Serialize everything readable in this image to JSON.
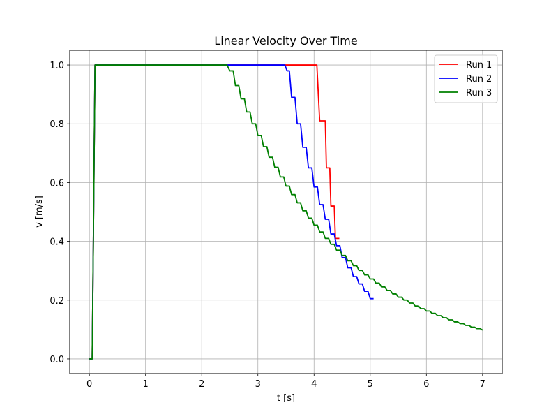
{
  "chart_data": {
    "type": "line",
    "title": "Linear Velocity Over Time",
    "xlabel": "t [s]",
    "ylabel": "v [m/s]",
    "xlim": [
      -0.35,
      7.35
    ],
    "ylim": [
      -0.05,
      1.05
    ],
    "xticks": [
      0,
      1,
      2,
      3,
      4,
      5,
      6,
      7
    ],
    "yticks": [
      0.0,
      0.2,
      0.4,
      0.6,
      0.8,
      1.0
    ],
    "xtick_labels": [
      "0",
      "1",
      "2",
      "3",
      "4",
      "5",
      "6",
      "7"
    ],
    "ytick_labels": [
      "0.0",
      "0.2",
      "0.4",
      "0.6",
      "0.8",
      "1.0"
    ],
    "grid": true,
    "legend_position": "top-right",
    "series": [
      {
        "name": "Run 1",
        "color": "#ff0000",
        "points": [
          [
            0.0,
            0.0
          ],
          [
            0.05,
            0.0
          ],
          [
            0.1,
            1.0
          ],
          [
            4.05,
            1.0
          ],
          [
            4.1,
            0.81
          ],
          [
            4.2,
            0.81
          ],
          [
            4.22,
            0.65
          ],
          [
            4.28,
            0.65
          ],
          [
            4.3,
            0.52
          ],
          [
            4.36,
            0.52
          ],
          [
            4.38,
            0.41
          ],
          [
            4.45,
            0.41
          ]
        ]
      },
      {
        "name": "Run 2",
        "color": "#0000ff",
        "points": [
          [
            0.0,
            0.0
          ],
          [
            0.05,
            0.0
          ],
          [
            0.1,
            1.0
          ],
          [
            3.48,
            1.0
          ],
          [
            3.52,
            0.98
          ],
          [
            3.56,
            0.98
          ],
          [
            3.6,
            0.89
          ],
          [
            3.66,
            0.89
          ],
          [
            3.7,
            0.8
          ],
          [
            3.76,
            0.8
          ],
          [
            3.8,
            0.72
          ],
          [
            3.86,
            0.72
          ],
          [
            3.9,
            0.65
          ],
          [
            3.96,
            0.65
          ],
          [
            4.0,
            0.585
          ],
          [
            4.06,
            0.585
          ],
          [
            4.1,
            0.525
          ],
          [
            4.16,
            0.525
          ],
          [
            4.2,
            0.475
          ],
          [
            4.26,
            0.475
          ],
          [
            4.3,
            0.425
          ],
          [
            4.36,
            0.425
          ],
          [
            4.4,
            0.385
          ],
          [
            4.46,
            0.385
          ],
          [
            4.5,
            0.345
          ],
          [
            4.56,
            0.345
          ],
          [
            4.6,
            0.31
          ],
          [
            4.66,
            0.31
          ],
          [
            4.7,
            0.28
          ],
          [
            4.76,
            0.28
          ],
          [
            4.8,
            0.255
          ],
          [
            4.86,
            0.255
          ],
          [
            4.9,
            0.23
          ],
          [
            4.96,
            0.23
          ],
          [
            5.0,
            0.205
          ],
          [
            5.06,
            0.205
          ]
        ]
      },
      {
        "name": "Run 3",
        "color": "#008000",
        "points": [
          [
            0.0,
            0.0
          ],
          [
            0.05,
            0.0
          ],
          [
            0.1,
            1.0
          ],
          [
            2.45,
            1.0
          ],
          [
            2.5,
            0.98
          ],
          [
            2.56,
            0.98
          ],
          [
            2.6,
            0.93
          ],
          [
            2.66,
            0.93
          ],
          [
            2.7,
            0.885
          ],
          [
            2.76,
            0.885
          ],
          [
            2.8,
            0.84
          ],
          [
            2.86,
            0.84
          ],
          [
            2.9,
            0.8
          ],
          [
            2.96,
            0.8
          ],
          [
            3.0,
            0.76
          ],
          [
            3.06,
            0.76
          ],
          [
            3.1,
            0.722
          ],
          [
            3.16,
            0.722
          ],
          [
            3.2,
            0.686
          ],
          [
            3.26,
            0.686
          ],
          [
            3.3,
            0.652
          ],
          [
            3.36,
            0.652
          ],
          [
            3.4,
            0.619
          ],
          [
            3.46,
            0.619
          ],
          [
            3.5,
            0.588
          ],
          [
            3.56,
            0.588
          ],
          [
            3.6,
            0.559
          ],
          [
            3.66,
            0.559
          ],
          [
            3.7,
            0.531
          ],
          [
            3.76,
            0.531
          ],
          [
            3.8,
            0.504
          ],
          [
            3.86,
            0.504
          ],
          [
            3.9,
            0.479
          ],
          [
            3.96,
            0.479
          ],
          [
            4.0,
            0.455
          ],
          [
            4.06,
            0.455
          ],
          [
            4.1,
            0.432
          ],
          [
            4.16,
            0.432
          ],
          [
            4.2,
            0.41
          ],
          [
            4.26,
            0.41
          ],
          [
            4.3,
            0.39
          ],
          [
            4.36,
            0.39
          ],
          [
            4.4,
            0.37
          ],
          [
            4.46,
            0.37
          ],
          [
            4.5,
            0.352
          ],
          [
            4.56,
            0.352
          ],
          [
            4.6,
            0.334
          ],
          [
            4.66,
            0.334
          ],
          [
            4.7,
            0.317
          ],
          [
            4.76,
            0.317
          ],
          [
            4.8,
            0.301
          ],
          [
            4.86,
            0.301
          ],
          [
            4.9,
            0.286
          ],
          [
            4.96,
            0.286
          ],
          [
            5.0,
            0.272
          ],
          [
            5.06,
            0.272
          ],
          [
            5.1,
            0.258
          ],
          [
            5.16,
            0.258
          ],
          [
            5.2,
            0.245
          ],
          [
            5.26,
            0.245
          ],
          [
            5.3,
            0.233
          ],
          [
            5.36,
            0.233
          ],
          [
            5.4,
            0.221
          ],
          [
            5.46,
            0.221
          ],
          [
            5.5,
            0.21
          ],
          [
            5.56,
            0.21
          ],
          [
            5.6,
            0.2
          ],
          [
            5.66,
            0.2
          ],
          [
            5.7,
            0.19
          ],
          [
            5.76,
            0.19
          ],
          [
            5.8,
            0.18
          ],
          [
            5.86,
            0.18
          ],
          [
            5.9,
            0.171
          ],
          [
            5.96,
            0.171
          ],
          [
            6.0,
            0.163
          ],
          [
            6.06,
            0.163
          ],
          [
            6.1,
            0.155
          ],
          [
            6.16,
            0.155
          ],
          [
            6.2,
            0.147
          ],
          [
            6.26,
            0.147
          ],
          [
            6.3,
            0.14
          ],
          [
            6.36,
            0.14
          ],
          [
            6.4,
            0.133
          ],
          [
            6.46,
            0.133
          ],
          [
            6.5,
            0.126
          ],
          [
            6.56,
            0.126
          ],
          [
            6.6,
            0.12
          ],
          [
            6.66,
            0.12
          ],
          [
            6.7,
            0.114
          ],
          [
            6.76,
            0.114
          ],
          [
            6.8,
            0.108
          ],
          [
            6.86,
            0.108
          ],
          [
            6.9,
            0.103
          ],
          [
            6.96,
            0.103
          ],
          [
            7.0,
            0.098
          ]
        ]
      }
    ]
  }
}
